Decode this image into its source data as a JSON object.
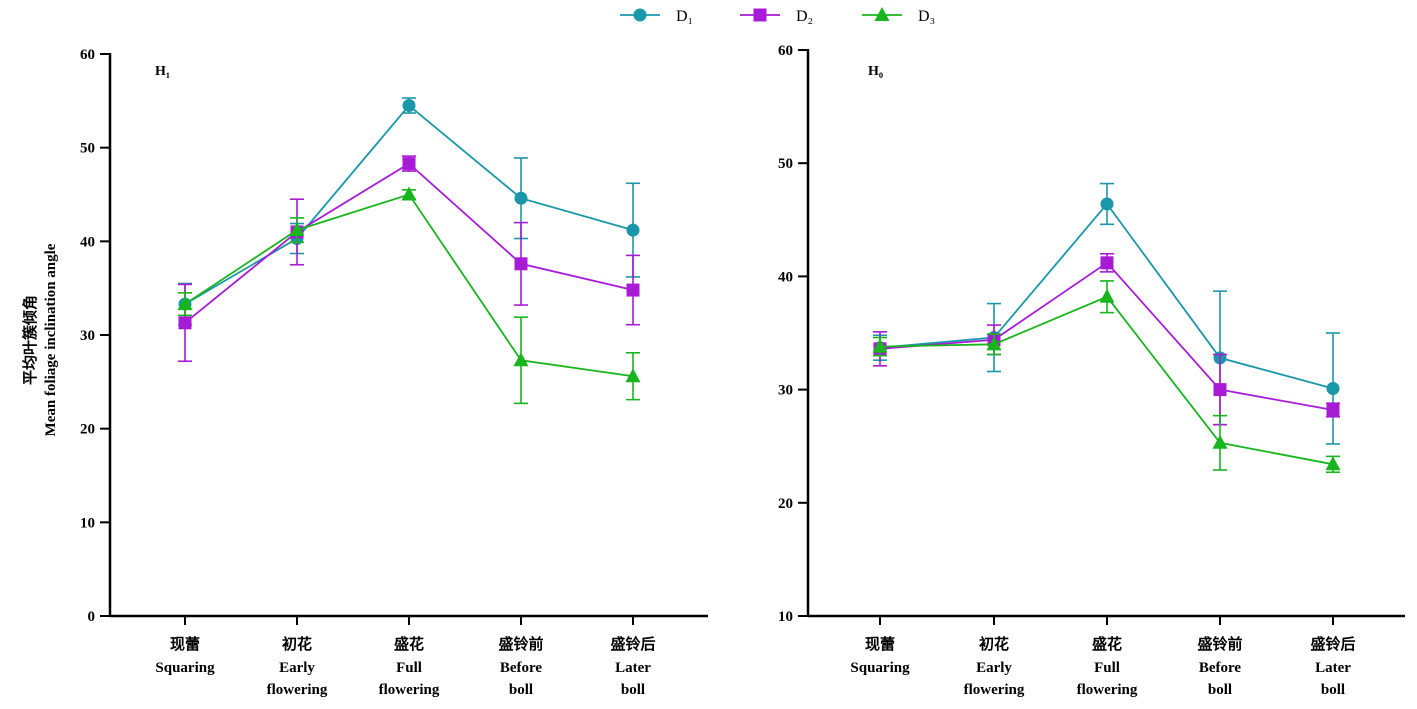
{
  "legend": [
    {
      "name": "D₁",
      "color": "#1a97a8",
      "marker": "circle"
    },
    {
      "name": "D₂",
      "color": "#a81bd6",
      "marker": "square"
    },
    {
      "name": "D₃",
      "color": "#19b51e",
      "marker": "triangle"
    }
  ],
  "y_axis_label": {
    "zh": "平均叶簇倾角",
    "en": "Mean foliage inclination angle"
  },
  "chart_data": [
    {
      "type": "line",
      "panel_label": "H₁",
      "categories": [
        {
          "zh": "现蕾",
          "en": [
            "Squaring"
          ]
        },
        {
          "zh": "初花",
          "en": [
            "Early",
            "flowering"
          ]
        },
        {
          "zh": "盛花",
          "en": [
            "Full",
            "flowering"
          ]
        },
        {
          "zh": "盛铃前",
          "en": [
            "Before",
            "boll"
          ]
        },
        {
          "zh": "盛铃后",
          "en": [
            "Later",
            "boll"
          ]
        }
      ],
      "ylim": [
        0,
        60
      ],
      "yticks": [
        0,
        10,
        20,
        30,
        40,
        50,
        60
      ],
      "series": [
        {
          "name": "D₁",
          "values": [
            33.3,
            40.3,
            54.5,
            44.6,
            41.2
          ],
          "errors": [
            2.2,
            1.6,
            0.8,
            4.3,
            5.0
          ]
        },
        {
          "name": "D₂",
          "values": [
            31.3,
            41.0,
            48.3,
            37.6,
            34.8
          ],
          "errors": [
            4.1,
            3.5,
            0.8,
            4.4,
            3.7
          ]
        },
        {
          "name": "D₃",
          "values": [
            33.3,
            41.2,
            45.0,
            27.3,
            25.6
          ],
          "errors": [
            1.2,
            1.3,
            0.5,
            4.6,
            2.5
          ]
        }
      ]
    },
    {
      "type": "line",
      "panel_label": "H₀",
      "categories": [
        {
          "zh": "现蕾",
          "en": [
            "Squaring"
          ]
        },
        {
          "zh": "初花",
          "en": [
            "Early",
            "flowering"
          ]
        },
        {
          "zh": "盛花",
          "en": [
            "Full",
            "flowering"
          ]
        },
        {
          "zh": "盛铃前",
          "en": [
            "Before",
            "boll"
          ]
        },
        {
          "zh": "盛铃后",
          "en": [
            "Later",
            "boll"
          ]
        }
      ],
      "ylim": [
        10,
        60
      ],
      "yticks": [
        10,
        20,
        30,
        40,
        50,
        60
      ],
      "series": [
        {
          "name": "D₁",
          "values": [
            33.7,
            34.6,
            46.4,
            32.8,
            30.1
          ],
          "errors": [
            1.1,
            3.0,
            1.8,
            5.9,
            4.9
          ]
        },
        {
          "name": "D₂",
          "values": [
            33.6,
            34.4,
            41.2,
            30.0,
            28.2
          ],
          "errors": [
            1.5,
            1.3,
            0.8,
            3.1,
            0.6
          ]
        },
        {
          "name": "D₃",
          "values": [
            33.8,
            34.0,
            38.2,
            25.3,
            23.4
          ],
          "errors": [
            0.8,
            0.9,
            1.4,
            2.4,
            0.7
          ]
        }
      ]
    }
  ]
}
